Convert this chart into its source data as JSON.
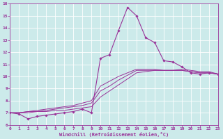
{
  "xlabel": "Windchill (Refroidissement éolien,°C)",
  "xlim": [
    0,
    23
  ],
  "ylim": [
    6,
    16
  ],
  "yticks": [
    6,
    7,
    8,
    9,
    10,
    11,
    12,
    13,
    14,
    15,
    16
  ],
  "xticks": [
    0,
    1,
    2,
    3,
    4,
    5,
    6,
    7,
    8,
    9,
    10,
    11,
    12,
    13,
    14,
    15,
    16,
    17,
    18,
    19,
    20,
    21,
    22,
    23
  ],
  "bg_color": "#cceaea",
  "line_color": "#993399",
  "grid_color": "#ffffff",
  "main_line": {
    "x": [
      0,
      1,
      2,
      3,
      4,
      5,
      6,
      7,
      8,
      9,
      10,
      11,
      12,
      13,
      14,
      15,
      16,
      17,
      18,
      19,
      20,
      21,
      22,
      23
    ],
    "y": [
      7.0,
      6.9,
      6.5,
      6.7,
      6.8,
      6.9,
      7.0,
      7.1,
      7.3,
      7.0,
      11.5,
      11.8,
      13.8,
      15.7,
      15.0,
      13.2,
      12.8,
      11.3,
      11.2,
      10.8,
      10.3,
      10.2,
      10.3,
      10.2
    ]
  },
  "smooth_lines": [
    {
      "x": [
        0,
        1,
        2,
        3,
        4,
        5,
        6,
        7,
        8,
        9,
        10,
        11,
        12,
        13,
        14,
        15,
        16,
        17,
        18,
        19,
        20,
        21,
        22,
        23
      ],
      "y": [
        7.0,
        7.0,
        7.0,
        7.1,
        7.1,
        7.2,
        7.2,
        7.3,
        7.4,
        7.5,
        8.3,
        8.8,
        9.3,
        9.8,
        10.3,
        10.4,
        10.5,
        10.5,
        10.5,
        10.6,
        10.5,
        10.4,
        10.4,
        10.2
      ]
    },
    {
      "x": [
        0,
        1,
        2,
        3,
        4,
        5,
        6,
        7,
        8,
        9,
        10,
        11,
        12,
        13,
        14,
        15,
        16,
        17,
        18,
        19,
        20,
        21,
        22,
        23
      ],
      "y": [
        7.0,
        7.0,
        7.1,
        7.1,
        7.2,
        7.3,
        7.4,
        7.5,
        7.6,
        7.8,
        8.8,
        9.2,
        9.7,
        10.1,
        10.5,
        10.5,
        10.5,
        10.5,
        10.5,
        10.5,
        10.4,
        10.3,
        10.3,
        10.2
      ]
    },
    {
      "x": [
        0,
        1,
        2,
        3,
        4,
        5,
        6,
        7,
        8,
        9,
        10,
        11,
        12,
        13,
        14,
        15,
        16,
        17,
        18,
        19,
        20,
        21,
        22,
        23
      ],
      "y": [
        7.0,
        7.0,
        7.1,
        7.2,
        7.3,
        7.4,
        7.5,
        7.6,
        7.8,
        8.0,
        9.2,
        9.6,
        10.0,
        10.3,
        10.6,
        10.6,
        10.6,
        10.5,
        10.5,
        10.5,
        10.4,
        10.3,
        10.3,
        10.2
      ]
    }
  ]
}
